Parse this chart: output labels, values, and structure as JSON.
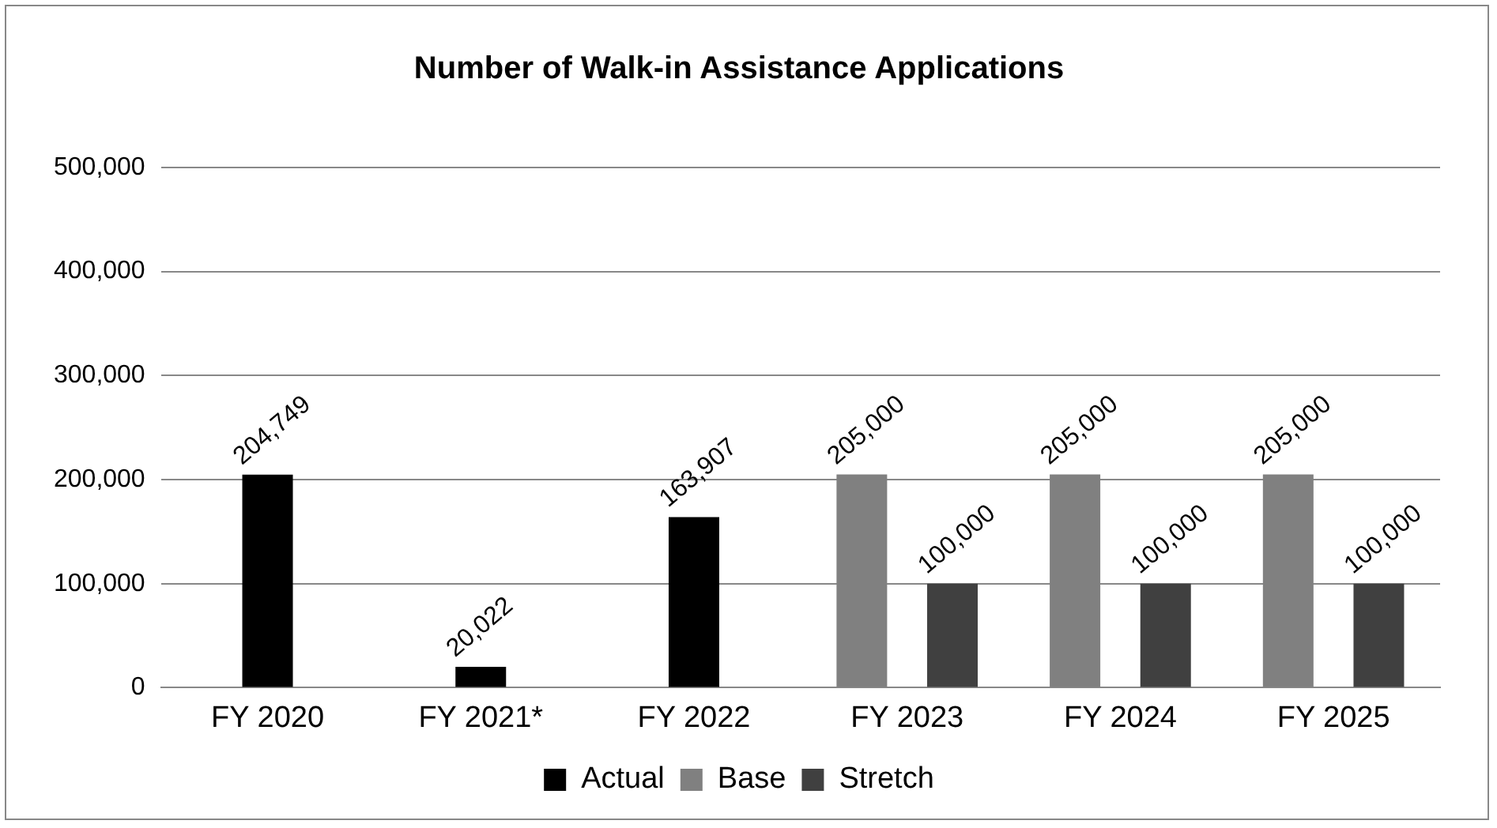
{
  "chart_data": {
    "type": "bar",
    "title": "Number of Walk-in Assistance Applications",
    "categories": [
      "FY 2020",
      "FY 2021*",
      "FY 2022",
      "FY 2023",
      "FY 2024",
      "FY 2025"
    ],
    "series": [
      {
        "name": "Actual",
        "color": "#000000",
        "values": [
          204749,
          20022,
          163907,
          null,
          null,
          null
        ],
        "value_labels": [
          "204,749",
          "20,022",
          "163,907",
          null,
          null,
          null
        ]
      },
      {
        "name": "Base",
        "color": "#808080",
        "values": [
          null,
          null,
          null,
          205000,
          205000,
          205000
        ],
        "value_labels": [
          null,
          null,
          null,
          "205,000",
          "205,000",
          "205,000"
        ]
      },
      {
        "name": "Stretch",
        "color": "#404040",
        "values": [
          null,
          null,
          null,
          100000,
          100000,
          100000
        ],
        "value_labels": [
          null,
          null,
          null,
          "100,000",
          "100,000",
          "100,000"
        ]
      }
    ],
    "ylim": [
      0,
      500000
    ],
    "yticks": [
      {
        "value": 0,
        "label": "0"
      },
      {
        "value": 100000,
        "label": "100,000"
      },
      {
        "value": 200000,
        "label": "200,000"
      },
      {
        "value": 300000,
        "label": "300,000"
      },
      {
        "value": 400000,
        "label": "400,000"
      },
      {
        "value": 500000,
        "label": "500,000"
      }
    ],
    "grid": "y",
    "legend": "bottom"
  }
}
